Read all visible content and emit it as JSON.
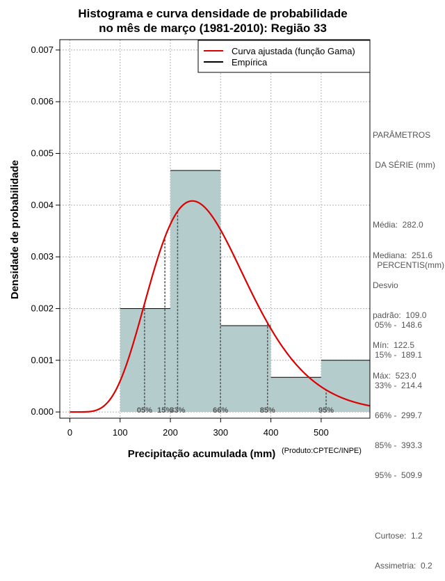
{
  "chart_data": {
    "type": "histogram",
    "title_line1": "Histograma e curva densidade de probabilidade",
    "title_line2": "no mês de março (1981-2010): Região 33",
    "xlabel": "Precipitação acumulada (mm)",
    "ylabel": "Densidade de probabilidade",
    "credit": "(Produto:CPTEC/INPE)",
    "xlim": [
      -20,
      597
    ],
    "ylim": [
      -0.00012,
      0.0072
    ],
    "x_ticks": [
      0,
      100,
      200,
      300,
      400,
      500
    ],
    "y_ticks": [
      0.0,
      0.001,
      0.002,
      0.003,
      0.004,
      0.005,
      0.006,
      0.007
    ],
    "y_tick_labels": [
      "0.000",
      "0.001",
      "0.002",
      "0.003",
      "0.004",
      "0.005",
      "0.006",
      "0.007"
    ],
    "bins": [
      {
        "start": 100,
        "end": 200,
        "density": 0.002
      },
      {
        "start": 200,
        "end": 300,
        "density": 0.00467
      },
      {
        "start": 300,
        "end": 400,
        "density": 0.00167
      },
      {
        "start": 400,
        "end": 500,
        "density": 0.00067
      },
      {
        "start": 500,
        "end": 600,
        "density": 0.001
      }
    ],
    "gamma_fit": {
      "shape": 7.38,
      "scale": 38.2
    },
    "legend": [
      {
        "label": "Curva ajustada (função Gama)",
        "color": "#dd0000"
      },
      {
        "label": "Empírica",
        "color": "#000000"
      }
    ],
    "percentile_lines": [
      {
        "label": "05%",
        "value": 148.6
      },
      {
        "label": "15%",
        "value": 189.1
      },
      {
        "label": "33%",
        "value": 214.4
      },
      {
        "label": "66%",
        "value": 299.7
      },
      {
        "label": "85%",
        "value": 393.3
      },
      {
        "label": "95%",
        "value": 509.9
      }
    ],
    "colors": {
      "bar_fill": "#b4cccc",
      "curve": "#dd0000",
      "grid": "#b0b0b0",
      "percentile": "#555555"
    }
  },
  "side_panel": {
    "params_title1": "PARÂMETROS",
    "params_title2": " DA SÉRIE (mm)",
    "media": "Média:  282.0",
    "mediana": "Mediana:  251.6",
    "desvio1": "Desvio",
    "desvio2": "padrão:  109.0",
    "min": "Mín:  122.5",
    "max": "Máx:  523.0",
    "percentis_title": " PERCENTIS(mm)",
    "p05": "05% -  148.6",
    "p15": "15% -  189.1",
    "p33": "33% -  214.4",
    "p66": "66% -  299.7",
    "p85": "85% -  393.3",
    "p95": "95% -  509.9",
    "curtose": "Curtose:  1.2",
    "assimetria": "Assimetria:  0.2"
  }
}
